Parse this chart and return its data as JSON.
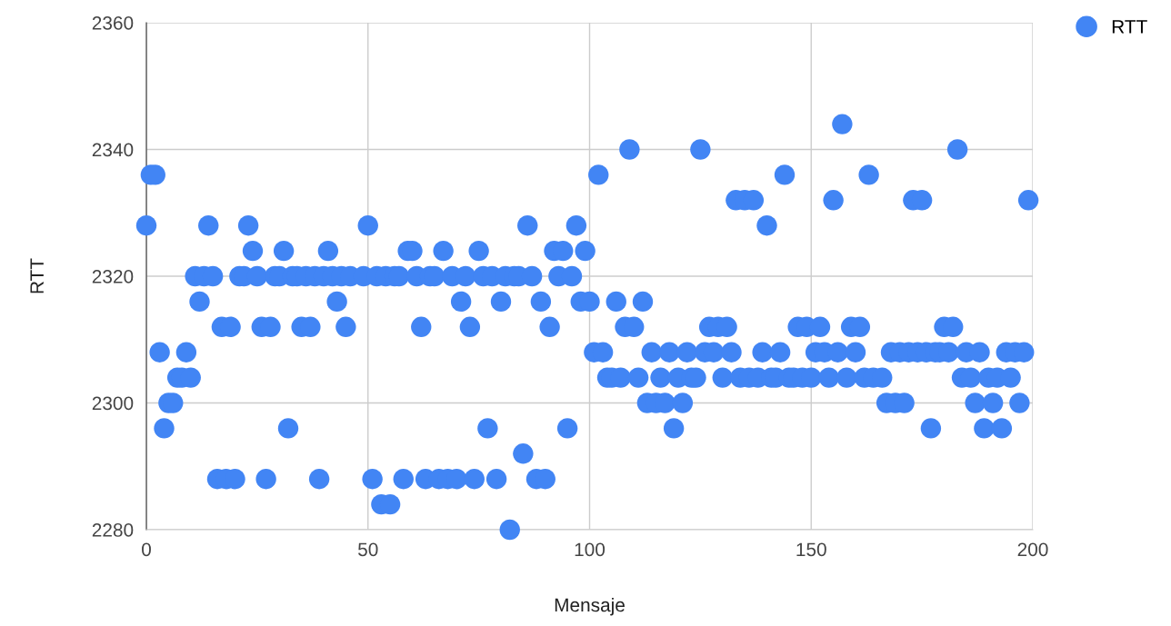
{
  "chart_data": {
    "type": "scatter",
    "xlabel": "Mensaje",
    "ylabel": "RTT",
    "x": [
      0,
      1,
      2,
      3,
      4,
      5,
      6,
      7,
      8,
      9,
      10,
      11,
      12,
      13,
      14,
      15,
      16,
      17,
      18,
      19,
      20,
      21,
      22,
      23,
      24,
      25,
      26,
      27,
      28,
      29,
      30,
      31,
      32,
      33,
      34,
      35,
      36,
      37,
      38,
      39,
      40,
      41,
      42,
      43,
      44,
      45,
      46,
      47,
      48,
      49,
      50,
      51,
      52,
      53,
      54,
      55,
      56,
      57,
      58,
      59,
      60,
      61,
      62,
      63,
      64,
      65,
      66,
      67,
      68,
      69,
      70,
      71,
      72,
      73,
      74,
      75,
      76,
      77,
      78,
      79,
      80,
      81,
      82,
      83,
      84,
      85,
      86,
      87,
      88,
      89,
      90,
      91,
      92,
      93,
      94,
      95,
      96,
      97,
      98,
      99,
      100,
      101,
      102,
      103,
      104,
      105,
      106,
      107,
      108,
      109,
      110,
      111,
      112,
      113,
      114,
      115,
      116,
      117,
      118,
      119,
      120,
      121,
      122,
      123,
      124,
      125,
      126,
      127,
      128,
      129,
      130,
      131,
      132,
      133,
      134,
      135,
      136,
      137,
      138,
      139,
      140,
      141,
      142,
      143,
      144,
      145,
      146,
      147,
      148,
      149,
      150,
      151,
      152,
      153,
      154,
      155,
      156,
      157,
      158,
      159,
      160,
      161,
      162,
      163,
      164,
      165,
      166,
      167,
      168,
      169,
      170,
      171,
      172,
      173,
      174,
      175,
      176,
      177,
      178,
      179,
      180,
      181,
      182,
      183,
      184,
      185,
      186,
      187,
      188,
      189,
      190,
      191,
      192,
      193,
      194,
      195,
      196,
      197,
      198,
      199
    ],
    "series": [
      {
        "name": "RTT",
        "color": "#4285f4",
        "values": [
          2328,
          2336,
          2336,
          2308,
          2296,
          2300,
          2300,
          2304,
          2304,
          2308,
          2304,
          2320,
          2316,
          2320,
          2328,
          2320,
          2288,
          2312,
          2288,
          2312,
          2288,
          2320,
          2320,
          2328,
          2324,
          2320,
          2312,
          2288,
          2312,
          2320,
          2320,
          2324,
          2296,
          2320,
          2320,
          2312,
          2320,
          2312,
          2320,
          2288,
          2320,
          2324,
          2320,
          2316,
          2320,
          2312,
          2320,
          null,
          null,
          2320,
          2328,
          2288,
          2320,
          2284,
          2320,
          2284,
          2320,
          2320,
          2288,
          2324,
          2324,
          2320,
          2312,
          2288,
          2320,
          2320,
          2288,
          2324,
          2288,
          2320,
          2288,
          2316,
          2320,
          2312,
          2288,
          2324,
          2320,
          2296,
          2320,
          2288,
          2316,
          2320,
          2280,
          2320,
          2320,
          2292,
          2328,
          2320,
          2288,
          2316,
          2288,
          2312,
          2324,
          2320,
          2324,
          2296,
          2320,
          2328,
          2316,
          2324,
          2316,
          2308,
          2336,
          2308,
          2304,
          2304,
          2316,
          2304,
          2312,
          2340,
          2312,
          2304,
          2316,
          2300,
          2308,
          2300,
          2304,
          2300,
          2308,
          2296,
          2304,
          2300,
          2308,
          2304,
          2304,
          2340,
          2308,
          2312,
          2308,
          2312,
          2304,
          2312,
          2308,
          2332,
          2304,
          2332,
          2304,
          2332,
          2304,
          2308,
          2328,
          2304,
          2304,
          2308,
          2336,
          2304,
          2304,
          2312,
          2304,
          2312,
          2304,
          2308,
          2312,
          2308,
          2304,
          2332,
          2308,
          2344,
          2304,
          2312,
          2308,
          2312,
          2304,
          2336,
          2304,
          null,
          2304,
          2300,
          2308,
          2300,
          2308,
          2300,
          2308,
          2332,
          2308,
          2332,
          2308,
          2296,
          2308,
          2308,
          2312,
          2308,
          2312,
          2340,
          2304,
          2308,
          2304,
          2300,
          2308,
          2296,
          2304,
          2300,
          2304,
          2296,
          2308,
          2304,
          2308,
          2300,
          2308,
          2332
        ]
      }
    ],
    "xlim": [
      0,
      200
    ],
    "xticks": [
      0,
      50,
      100,
      150,
      200
    ],
    "ylim": [
      2280,
      2360
    ],
    "yticks": [
      2280,
      2300,
      2320,
      2340,
      2360
    ],
    "grid": true,
    "legend": "top right",
    "marker": "circle"
  }
}
